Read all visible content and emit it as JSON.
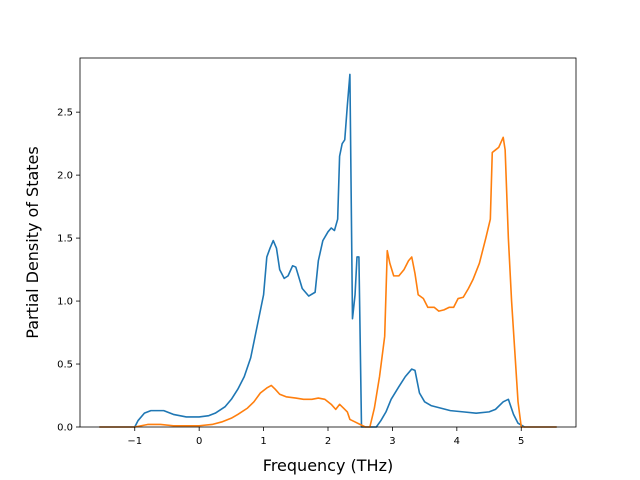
{
  "chart_data": {
    "type": "line",
    "title": "",
    "xlabel": "Frequency (THz)",
    "ylabel": "Partial Density of States",
    "xlim": [
      -1.85,
      5.85
    ],
    "ylim": [
      0,
      2.93
    ],
    "xticks": [
      -1,
      0,
      1,
      2,
      3,
      4,
      5
    ],
    "yticks": [
      0.0,
      0.5,
      1.0,
      1.5,
      2.0,
      2.5
    ],
    "xtick_labels": [
      "−1",
      "0",
      "1",
      "2",
      "3",
      "4",
      "5"
    ],
    "ytick_labels": [
      "0.0",
      "0.5",
      "1.0",
      "1.5",
      "2.0",
      "2.5"
    ],
    "grid": false,
    "legend": "none",
    "series": [
      {
        "color": "#1f77b4",
        "points": [
          [
            -1.55,
            0.0
          ],
          [
            -1.0,
            0.0
          ],
          [
            -0.95,
            0.05
          ],
          [
            -0.85,
            0.11
          ],
          [
            -0.75,
            0.13
          ],
          [
            -0.55,
            0.13
          ],
          [
            -0.4,
            0.1
          ],
          [
            -0.2,
            0.08
          ],
          [
            0.0,
            0.08
          ],
          [
            0.15,
            0.09
          ],
          [
            0.25,
            0.11
          ],
          [
            0.4,
            0.16
          ],
          [
            0.5,
            0.22
          ],
          [
            0.6,
            0.3
          ],
          [
            0.7,
            0.4
          ],
          [
            0.8,
            0.55
          ],
          [
            0.9,
            0.8
          ],
          [
            1.0,
            1.05
          ],
          [
            1.05,
            1.35
          ],
          [
            1.1,
            1.42
          ],
          [
            1.15,
            1.48
          ],
          [
            1.2,
            1.42
          ],
          [
            1.25,
            1.25
          ],
          [
            1.32,
            1.18
          ],
          [
            1.38,
            1.2
          ],
          [
            1.45,
            1.28
          ],
          [
            1.5,
            1.27
          ],
          [
            1.6,
            1.1
          ],
          [
            1.7,
            1.04
          ],
          [
            1.8,
            1.07
          ],
          [
            1.85,
            1.32
          ],
          [
            1.92,
            1.48
          ],
          [
            2.0,
            1.55
          ],
          [
            2.05,
            1.58
          ],
          [
            2.1,
            1.56
          ],
          [
            2.15,
            1.65
          ],
          [
            2.18,
            2.15
          ],
          [
            2.22,
            2.25
          ],
          [
            2.26,
            2.28
          ],
          [
            2.3,
            2.55
          ],
          [
            2.34,
            2.8
          ],
          [
            2.38,
            0.86
          ],
          [
            2.42,
            1.05
          ],
          [
            2.45,
            1.35
          ],
          [
            2.48,
            1.35
          ],
          [
            2.52,
            0.0
          ],
          [
            2.75,
            0.0
          ],
          [
            2.82,
            0.05
          ],
          [
            2.9,
            0.12
          ],
          [
            2.98,
            0.22
          ],
          [
            3.1,
            0.32
          ],
          [
            3.2,
            0.4
          ],
          [
            3.3,
            0.46
          ],
          [
            3.35,
            0.45
          ],
          [
            3.42,
            0.27
          ],
          [
            3.5,
            0.2
          ],
          [
            3.6,
            0.17
          ],
          [
            3.75,
            0.15
          ],
          [
            3.9,
            0.13
          ],
          [
            4.1,
            0.12
          ],
          [
            4.3,
            0.11
          ],
          [
            4.5,
            0.12
          ],
          [
            4.6,
            0.14
          ],
          [
            4.72,
            0.2
          ],
          [
            4.8,
            0.22
          ],
          [
            4.88,
            0.1
          ],
          [
            4.95,
            0.03
          ],
          [
            5.05,
            0.0
          ],
          [
            5.55,
            0.0
          ]
        ]
      },
      {
        "color": "#ff7f0e",
        "points": [
          [
            -1.55,
            0.0
          ],
          [
            -1.0,
            0.0
          ],
          [
            -0.8,
            0.02
          ],
          [
            -0.6,
            0.02
          ],
          [
            -0.4,
            0.01
          ],
          [
            -0.2,
            0.01
          ],
          [
            0.0,
            0.01
          ],
          [
            0.2,
            0.02
          ],
          [
            0.35,
            0.04
          ],
          [
            0.5,
            0.07
          ],
          [
            0.6,
            0.1
          ],
          [
            0.75,
            0.15
          ],
          [
            0.85,
            0.2
          ],
          [
            0.95,
            0.27
          ],
          [
            1.05,
            0.31
          ],
          [
            1.12,
            0.33
          ],
          [
            1.18,
            0.3
          ],
          [
            1.25,
            0.26
          ],
          [
            1.35,
            0.24
          ],
          [
            1.5,
            0.23
          ],
          [
            1.62,
            0.22
          ],
          [
            1.75,
            0.22
          ],
          [
            1.85,
            0.23
          ],
          [
            1.95,
            0.22
          ],
          [
            2.05,
            0.18
          ],
          [
            2.12,
            0.14
          ],
          [
            2.18,
            0.18
          ],
          [
            2.24,
            0.15
          ],
          [
            2.3,
            0.12
          ],
          [
            2.34,
            0.06
          ],
          [
            2.42,
            0.04
          ],
          [
            2.5,
            0.02
          ],
          [
            2.58,
            0.0
          ],
          [
            2.65,
            0.0
          ],
          [
            2.72,
            0.15
          ],
          [
            2.8,
            0.4
          ],
          [
            2.88,
            0.72
          ],
          [
            2.92,
            1.4
          ],
          [
            2.96,
            1.3
          ],
          [
            3.02,
            1.2
          ],
          [
            3.1,
            1.2
          ],
          [
            3.18,
            1.25
          ],
          [
            3.25,
            1.32
          ],
          [
            3.3,
            1.35
          ],
          [
            3.35,
            1.22
          ],
          [
            3.4,
            1.05
          ],
          [
            3.48,
            1.02
          ],
          [
            3.55,
            0.95
          ],
          [
            3.65,
            0.95
          ],
          [
            3.72,
            0.92
          ],
          [
            3.8,
            0.93
          ],
          [
            3.88,
            0.95
          ],
          [
            3.95,
            0.95
          ],
          [
            4.02,
            1.02
          ],
          [
            4.1,
            1.03
          ],
          [
            4.18,
            1.1
          ],
          [
            4.25,
            1.17
          ],
          [
            4.35,
            1.3
          ],
          [
            4.45,
            1.5
          ],
          [
            4.52,
            1.65
          ],
          [
            4.55,
            2.18
          ],
          [
            4.6,
            2.2
          ],
          [
            4.65,
            2.22
          ],
          [
            4.72,
            2.3
          ],
          [
            4.75,
            2.2
          ],
          [
            4.8,
            1.5
          ],
          [
            4.85,
            1.0
          ],
          [
            4.9,
            0.6
          ],
          [
            4.95,
            0.2
          ],
          [
            5.0,
            0.0
          ],
          [
            5.55,
            0.0
          ]
        ]
      }
    ]
  }
}
